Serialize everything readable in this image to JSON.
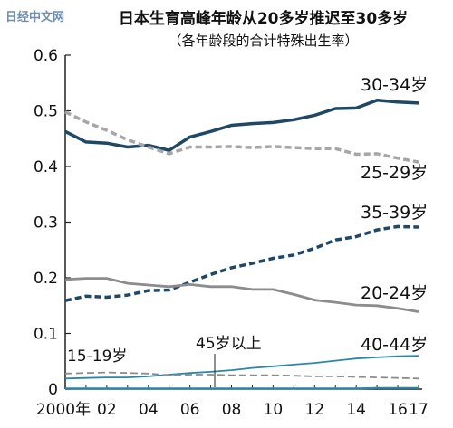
{
  "logo_text": "日经中文网",
  "chart_data": {
    "type": "line",
    "title": "日本生育高峰年龄从20多岁推迟至30多岁",
    "subtitle": "（各年龄段的合计特殊出生率）",
    "xlabel": "",
    "ylabel": "",
    "x": [
      2000,
      2001,
      2002,
      2003,
      2004,
      2005,
      2006,
      2007,
      2008,
      2009,
      2010,
      2011,
      2012,
      2013,
      2014,
      2015,
      2016,
      2017
    ],
    "x_tick_labels": [
      "2000年",
      "02",
      "04",
      "06",
      "08",
      "10",
      "12",
      "14",
      "16",
      "17"
    ],
    "x_tick_values": [
      2000,
      2002,
      2004,
      2006,
      2008,
      2010,
      2012,
      2014,
      2016,
      2017
    ],
    "ylim": [
      0,
      0.6
    ],
    "y_ticks": [
      "0",
      "0.1",
      "0.2",
      "0.3",
      "0.4",
      "0.5",
      "0.6"
    ],
    "y_tick_values": [
      0,
      0.1,
      0.2,
      0.3,
      0.4,
      0.5,
      0.6
    ],
    "grid": false,
    "series": [
      {
        "name": "30-34岁",
        "color": "#1f4866",
        "style": "solid",
        "values": [
          0.463,
          0.444,
          0.442,
          0.435,
          0.438,
          0.429,
          0.453,
          0.463,
          0.474,
          0.477,
          0.479,
          0.484,
          0.492,
          0.504,
          0.505,
          0.519,
          0.516,
          0.514
        ]
      },
      {
        "name": "25-29岁",
        "color": "#a6a6a6",
        "style": "dashed",
        "values": [
          0.498,
          0.48,
          0.465,
          0.448,
          0.435,
          0.423,
          0.435,
          0.435,
          0.436,
          0.434,
          0.436,
          0.434,
          0.432,
          0.432,
          0.422,
          0.423,
          0.415,
          0.408
        ]
      },
      {
        "name": "35-39岁",
        "color": "#1f4866",
        "style": "dashed",
        "values": [
          0.159,
          0.167,
          0.165,
          0.169,
          0.177,
          0.178,
          0.192,
          0.206,
          0.218,
          0.226,
          0.235,
          0.241,
          0.253,
          0.268,
          0.274,
          0.286,
          0.292,
          0.291
        ]
      },
      {
        "name": "20-24岁",
        "color": "#8c8c8c",
        "style": "solid",
        "values": [
          0.197,
          0.199,
          0.199,
          0.19,
          0.187,
          0.184,
          0.188,
          0.184,
          0.184,
          0.179,
          0.179,
          0.17,
          0.16,
          0.156,
          0.151,
          0.15,
          0.145,
          0.139
        ]
      },
      {
        "name": "40-44岁",
        "color": "#2a87a8",
        "style": "solid",
        "values": [
          0.019,
          0.02,
          0.021,
          0.021,
          0.023,
          0.026,
          0.029,
          0.031,
          0.034,
          0.038,
          0.041,
          0.044,
          0.047,
          0.051,
          0.055,
          0.057,
          0.059,
          0.06
        ]
      },
      {
        "name": "15-19岁",
        "color": "#8c8c8c",
        "style": "dashed",
        "values": [
          0.028,
          0.029,
          0.03,
          0.029,
          0.028,
          0.025,
          0.026,
          0.026,
          0.025,
          0.025,
          0.025,
          0.024,
          0.023,
          0.023,
          0.022,
          0.021,
          0.02,
          0.019
        ]
      },
      {
        "name": "45岁以上",
        "color": "#2a87a8",
        "style": "solid",
        "values": [
          0.001,
          0.001,
          0.001,
          0.001,
          0.001,
          0.001,
          0.001,
          0.001,
          0.001,
          0.001,
          0.001,
          0.001,
          0.001,
          0.001,
          0.001,
          0.002,
          0.002,
          0.002
        ]
      }
    ],
    "annotations": [
      "45岁以上"
    ]
  }
}
